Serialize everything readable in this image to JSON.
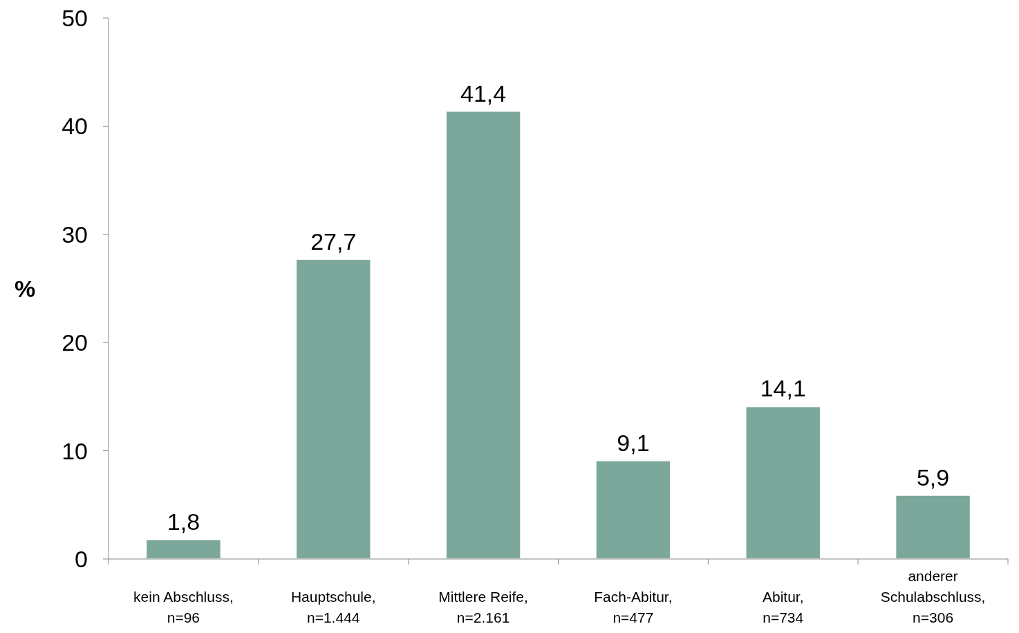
{
  "chart_data": {
    "type": "bar",
    "ylabel": "%",
    "categories": [
      "kein Abschluss,\nn=96",
      "Hauptschule,\nn=1.444",
      "Mittlere Reife,\nn=2.161",
      "Fach-Abitur,\nn=477",
      "Abitur,\nn=734",
      "anderer\nSchulabschluss,\nn=306"
    ],
    "values": [
      1.8,
      27.7,
      41.4,
      9.1,
      14.1,
      5.9
    ],
    "value_labels": [
      "1,8",
      "27,7",
      "41,4",
      "9,1",
      "14,1",
      "5,9"
    ],
    "color": "#7ba89b",
    "ylim": [
      0,
      50
    ],
    "yticks": [
      0,
      10,
      20,
      30,
      40,
      50
    ],
    "grid": false
  }
}
